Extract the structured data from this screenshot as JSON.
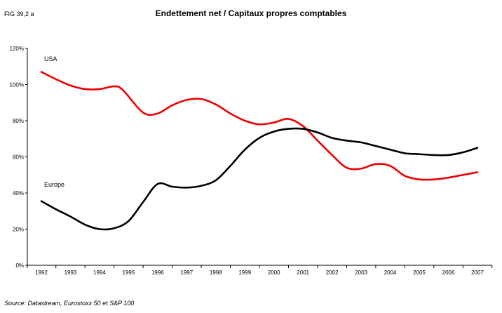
{
  "figure_label": "FIG 39,2 a",
  "source": "Source: Datastream, Eurostoxx 50 et S&P 100",
  "chart_data": {
    "type": "line",
    "title": "Endettement net / Capitaux propres comptables",
    "xlabel": "",
    "ylabel": "",
    "ylim": [
      0,
      120
    ],
    "y_ticks": [
      0,
      20,
      40,
      60,
      80,
      100,
      120
    ],
    "y_tick_labels": [
      "0%",
      "20%",
      "40%",
      "60%",
      "80%",
      "100%",
      "120%"
    ],
    "categories": [
      "1992",
      "1993",
      "1994",
      "1995",
      "1996",
      "1997",
      "1998",
      "1999",
      "2000",
      "2001",
      "2002",
      "2003",
      "2004",
      "2005",
      "2006",
      "2007"
    ],
    "grid": false,
    "legend": "none",
    "series": [
      {
        "name": "USA",
        "color": "#ee0000",
        "points": [
          [
            0,
            107
          ],
          [
            0.5,
            103
          ],
          [
            1,
            99.5
          ],
          [
            1.5,
            97.5
          ],
          [
            2,
            97.5
          ],
          [
            2.5,
            99
          ],
          [
            2.8,
            97
          ],
          [
            3.5,
            84.5
          ],
          [
            4,
            84
          ],
          [
            4.5,
            88.5
          ],
          [
            5,
            91.5
          ],
          [
            5.5,
            92
          ],
          [
            6,
            89
          ],
          [
            6.5,
            84
          ],
          [
            7,
            80
          ],
          [
            7.5,
            78
          ],
          [
            8,
            79
          ],
          [
            8.5,
            81
          ],
          [
            9,
            77
          ],
          [
            9.5,
            69
          ],
          [
            10,
            61
          ],
          [
            10.5,
            54
          ],
          [
            11,
            53.5
          ],
          [
            11.5,
            56
          ],
          [
            12,
            55
          ],
          [
            12.5,
            49.5
          ],
          [
            13,
            47.5
          ],
          [
            13.5,
            47.5
          ],
          [
            14,
            48.5
          ],
          [
            14.5,
            50
          ],
          [
            15,
            51.5
          ]
        ]
      },
      {
        "name": "Europe",
        "color": "#000000",
        "points": [
          [
            0,
            35.5
          ],
          [
            0.5,
            31
          ],
          [
            1,
            27
          ],
          [
            1.5,
            22.5
          ],
          [
            2,
            20
          ],
          [
            2.5,
            20.5
          ],
          [
            3,
            24.5
          ],
          [
            3.5,
            35
          ],
          [
            4,
            45
          ],
          [
            4.5,
            43.5
          ],
          [
            5,
            43
          ],
          [
            5.5,
            44
          ],
          [
            6,
            47
          ],
          [
            6.5,
            55
          ],
          [
            7,
            64
          ],
          [
            7.5,
            70.5
          ],
          [
            8,
            74
          ],
          [
            8.5,
            75.5
          ],
          [
            9,
            75.5
          ],
          [
            9.5,
            73.5
          ],
          [
            10,
            70.5
          ],
          [
            10.5,
            69
          ],
          [
            11,
            68
          ],
          [
            11.5,
            66
          ],
          [
            12,
            64
          ],
          [
            12.5,
            62
          ],
          [
            13,
            61.5
          ],
          [
            13.5,
            61
          ],
          [
            14,
            61
          ],
          [
            14.5,
            62.5
          ],
          [
            15,
            65
          ]
        ]
      }
    ]
  }
}
